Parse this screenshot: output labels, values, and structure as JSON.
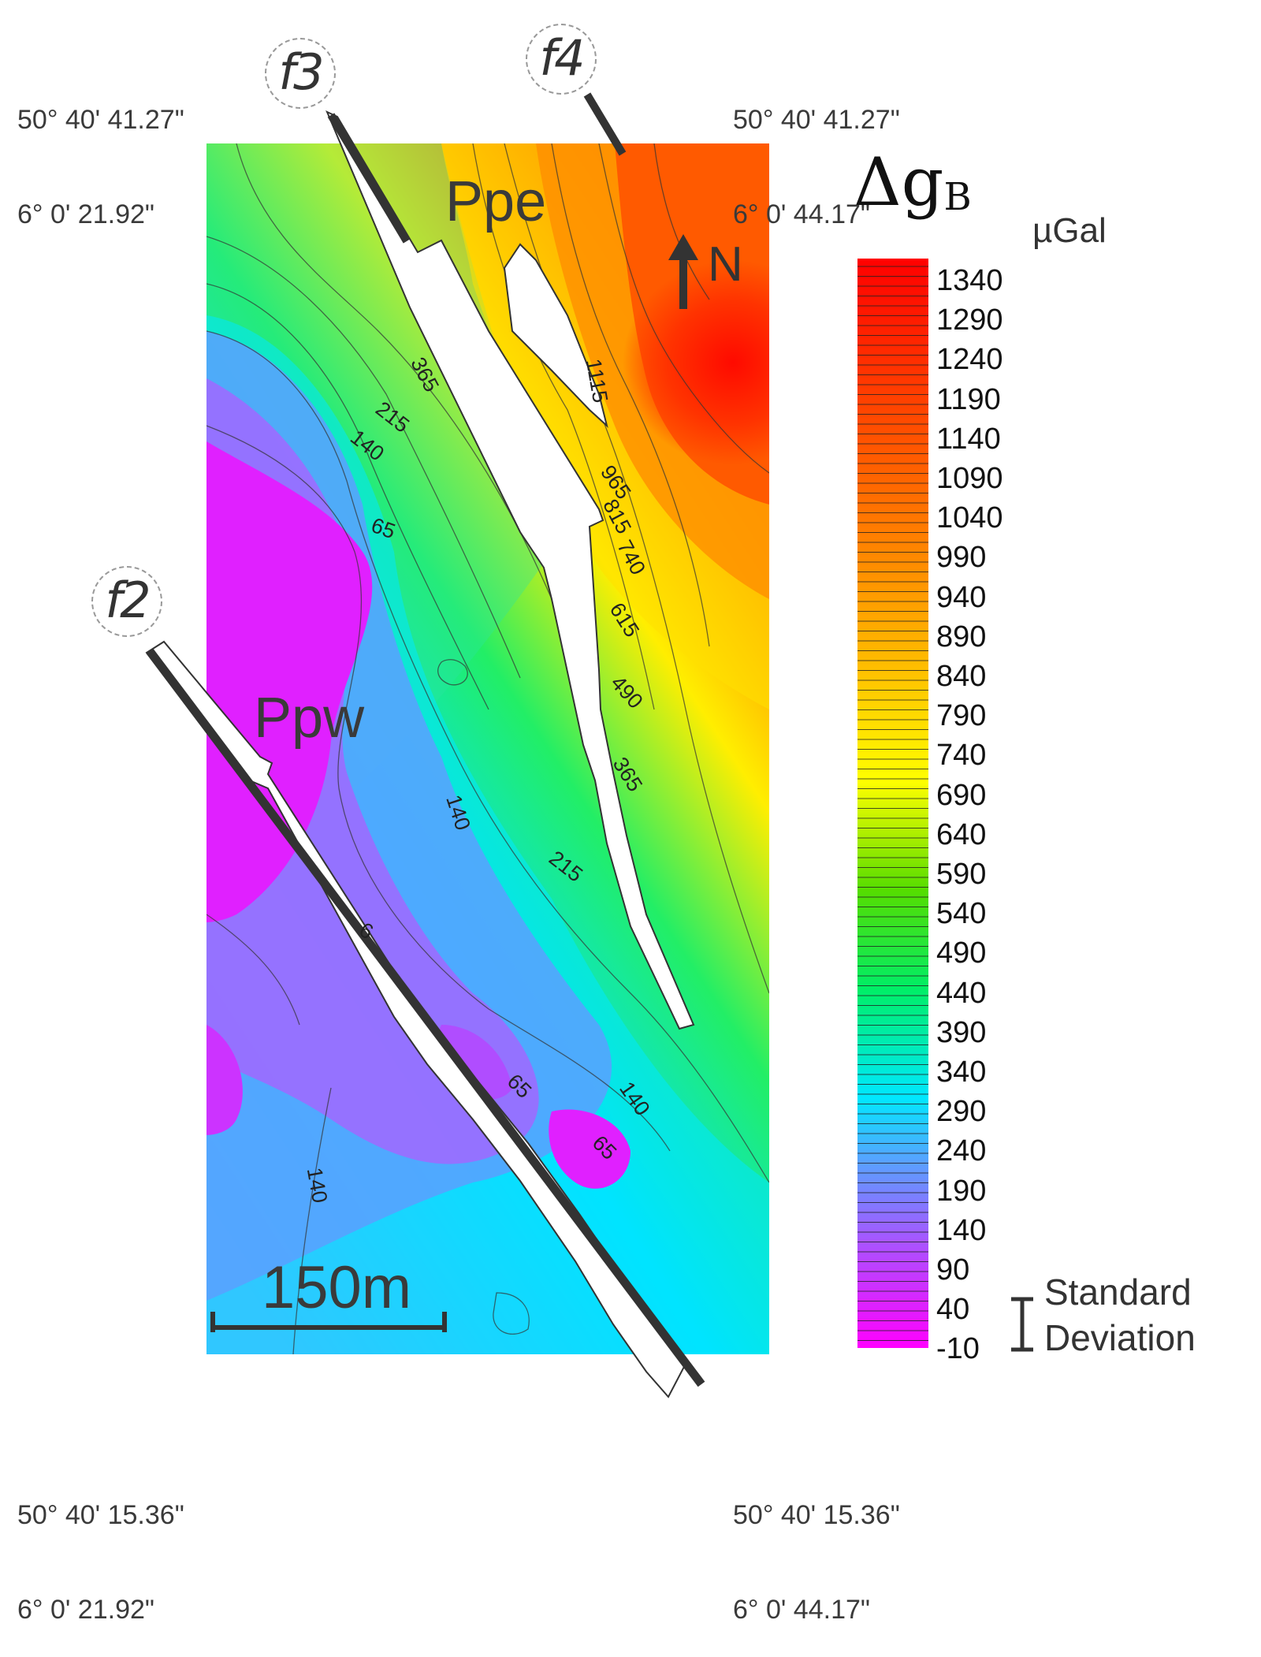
{
  "coordinates": {
    "top_left": [
      "50° 40' 41.27\"",
      "6° 0' 21.92\""
    ],
    "top_right": [
      "50° 40' 41.27\"",
      "6° 0' 44.17\""
    ],
    "bottom_left": [
      "50° 40' 15.36\"",
      "6° 0' 21.92\""
    ],
    "bottom_right": [
      "50° 40' 15.36\"",
      "6° 0' 44.17\""
    ]
  },
  "faults": [
    "f3",
    "f4",
    "f2"
  ],
  "zones": [
    "Ppe",
    "Ppw"
  ],
  "north_label": "N",
  "scale_bar": "150m",
  "contour_labels": [
    "365",
    "215",
    "140",
    "65",
    "1115",
    "965",
    "815",
    "740",
    "615",
    "490",
    "365",
    "140",
    "215",
    "6",
    "65",
    "140",
    "65",
    "140"
  ],
  "legend": {
    "title": "Δg",
    "subscript": "B",
    "unit": "µGal",
    "ticks": [
      "1340",
      "1290",
      "1240",
      "1190",
      "1140",
      "1090",
      "1040",
      "990",
      "940",
      "890",
      "840",
      "790",
      "740",
      "690",
      "640",
      "590",
      "540",
      "490",
      "440",
      "390",
      "340",
      "290",
      "240",
      "190",
      "140",
      "90",
      "40",
      "-10"
    ],
    "standard_deviation": [
      "Standard",
      "Deviation"
    ],
    "colors": [
      "#ff00ff",
      "#9966ff",
      "#4fa4ff",
      "#00e8ff",
      "#00ee66",
      "#66dd00",
      "#ffff00",
      "#ffbb00",
      "#ff7700",
      "#ff0000"
    ]
  }
}
